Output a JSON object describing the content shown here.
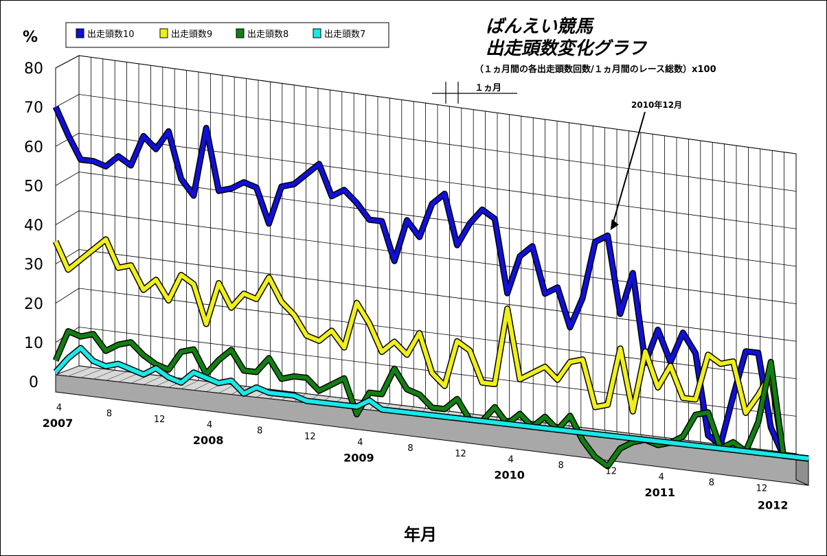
{
  "chart_data": {
    "type": "line",
    "title": "ばんえい競馬",
    "subtitle": "出走頭数変化グラフ",
    "formula": "（１ヵ月間の各出走頭数回数/１ヵ月間のレース総数）x100",
    "ylabel": "%",
    "xlabel": "年月",
    "ylim": [
      0,
      80
    ],
    "yticks": [
      0,
      10,
      20,
      30,
      40,
      50,
      60,
      70,
      80
    ],
    "months": 61,
    "start": "2007-04",
    "x_month_ticks": [
      "4",
      "8",
      "12",
      "4",
      "8",
      "12",
      "4",
      "8",
      "12",
      "4",
      "8",
      "12",
      "4",
      "8",
      "12"
    ],
    "x_year_ticks": [
      "2007",
      "2008",
      "2009",
      "2010",
      "2011",
      "2012"
    ],
    "annotation_month": "１ヵ月",
    "annotation_point": "2010年12月",
    "legend": [
      "出走頭数10",
      "出走頭数9",
      "出走頭数8",
      "出走頭数7"
    ],
    "series": [
      {
        "name": "出走頭数10",
        "color": "#1010d8",
        "values": [
          68,
          61,
          55,
          55,
          54,
          57,
          55,
          63,
          60,
          65,
          53,
          49,
          67,
          51,
          52,
          54,
          53,
          44,
          54,
          55,
          58,
          61,
          53,
          55,
          52,
          48,
          48,
          38,
          49,
          45,
          54,
          57,
          44,
          50,
          54,
          52,
          33,
          43,
          46,
          34,
          36,
          26,
          34,
          49,
          51,
          31,
          42,
          19,
          28,
          20,
          28,
          23,
          2,
          0,
          13,
          25,
          25,
          6,
          -1,
          -1,
          -1
        ]
      },
      {
        "name": "出走頭数9",
        "color": "#f0f018",
        "values": [
          33,
          26,
          29,
          32,
          35,
          28,
          29,
          23,
          26,
          21,
          28,
          26,
          16,
          27,
          21,
          25,
          24,
          30,
          24,
          21,
          16,
          15,
          18,
          14,
          26,
          21,
          14,
          17,
          14,
          20,
          10,
          7,
          19,
          17,
          9,
          9,
          29,
          11,
          13,
          15,
          12,
          17,
          18,
          6,
          7,
          22,
          6,
          22,
          13,
          19,
          11,
          11,
          23,
          21,
          22,
          9,
          14,
          20,
          -1,
          -1,
          -1
        ]
      },
      {
        "name": "出走頭数8",
        "color": "#108010",
        "values": [
          2,
          10,
          9,
          10,
          6,
          8,
          9,
          6,
          4,
          3,
          8,
          9,
          3,
          7,
          10,
          5,
          5,
          9,
          4,
          5,
          5,
          2,
          4,
          6,
          -3,
          3,
          3,
          10,
          5,
          4,
          1,
          1,
          4,
          -1,
          -1,
          3,
          -1,
          2,
          -1,
          2,
          -1,
          3,
          -3,
          -7,
          -9,
          -4,
          -2,
          -1,
          -2,
          -1,
          1,
          7,
          8,
          -1,
          1,
          -1,
          7,
          23,
          -1,
          -1,
          -1
        ]
      },
      {
        "name": "出走頭数7",
        "color": "#18e8e8",
        "values": [
          -1,
          3,
          6,
          3,
          2,
          3,
          2,
          1,
          3,
          1,
          0,
          3,
          2,
          1,
          2,
          -1,
          1,
          0,
          0,
          0,
          -1,
          -1,
          -1,
          -1,
          -1,
          1,
          -1,
          -1,
          -1,
          -1,
          -1,
          -1,
          -1,
          -1,
          -1,
          -1,
          -1,
          -1,
          -1,
          -1,
          -1,
          -1,
          -1,
          -1,
          -1,
          -1,
          -1,
          -1,
          -1,
          -1,
          -1,
          -1,
          -1,
          -1,
          -1,
          -1,
          -1,
          -1,
          -1,
          -1,
          -1
        ]
      }
    ]
  }
}
